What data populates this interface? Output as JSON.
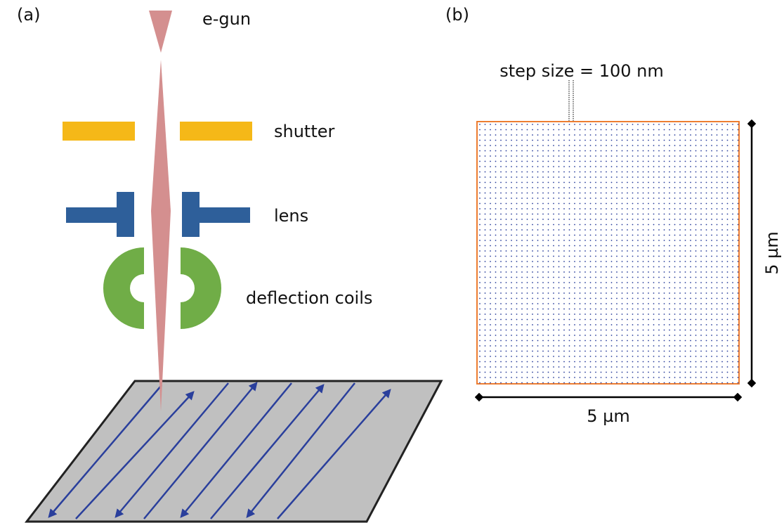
{
  "panel_a": {
    "label": "(a)",
    "components": [
      "e-gun",
      "shutter",
      "lens",
      "deflection coils"
    ]
  },
  "panel_b": {
    "label": "(b)",
    "step_size": "step size = 100 nm",
    "height_label": "5 µm",
    "width_label": "5 µm"
  }
}
